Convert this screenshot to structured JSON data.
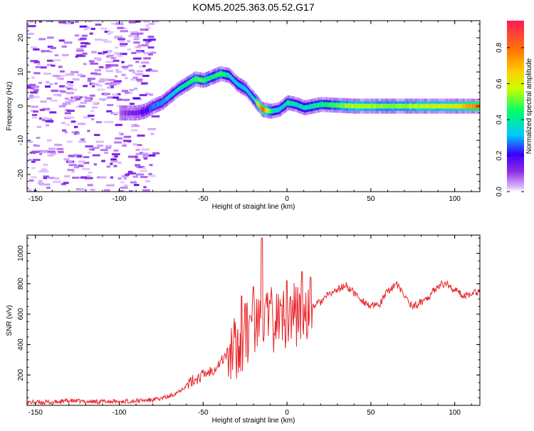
{
  "title": "KOM5.2025.363.05.52.G17",
  "colors": {
    "background": "#ffffff",
    "axis": "#000000",
    "snr_line": "#e8242a",
    "colormap": [
      "#ffffff",
      "#d9b3ff",
      "#8a2be2",
      "#3a00ff",
      "#00c8ff",
      "#00ff6a",
      "#c8ff00",
      "#ffd000",
      "#ff7a00",
      "#ff1a5a"
    ]
  },
  "chart_data": [
    {
      "type": "heatmap",
      "xlabel": "Height of straight line (km)",
      "ylabel": "Frequency (Hz)",
      "xlim": [
        -155,
        115
      ],
      "ylim": [
        -25,
        25
      ],
      "xticks": [
        -150,
        -100,
        -50,
        0,
        50,
        100
      ],
      "yticks": [
        -20,
        -10,
        0,
        10,
        20
      ],
      "colorbar": {
        "label": "Normalized spectral amplitude",
        "range": [
          0,
          0.95
        ],
        "ticks": [
          0.0,
          0.2,
          0.4,
          0.6,
          0.8
        ]
      },
      "ridge": {
        "description_points_x": [
          -100,
          -90,
          -85,
          -80,
          -75,
          -70,
          -65,
          -60,
          -55,
          -50,
          -45,
          -40,
          -35,
          -30,
          -25,
          -20,
          -15,
          -10,
          -5,
          0,
          5,
          10,
          20,
          40,
          60,
          80,
          100,
          115
        ],
        "frequency": [
          -2,
          -2,
          -1.5,
          0,
          1,
          3,
          5,
          6.5,
          8,
          7.5,
          8.5,
          9.5,
          9,
          6.5,
          5,
          2,
          -1,
          -1.5,
          -1,
          1,
          0.5,
          -0.5,
          0.5,
          0,
          0,
          0,
          0,
          0
        ],
        "amplitude": [
          0.1,
          0.15,
          0.2,
          0.3,
          0.3,
          0.35,
          0.4,
          0.45,
          0.5,
          0.5,
          0.45,
          0.5,
          0.4,
          0.35,
          0.35,
          0.4,
          0.9,
          0.45,
          0.35,
          0.45,
          0.4,
          0.4,
          0.45,
          0.6,
          0.55,
          0.6,
          0.65,
          0.85
        ]
      }
    },
    {
      "type": "line",
      "xlabel": "Height of straight line (km)",
      "ylabel": "SNR (v/v)",
      "xlim": [
        -155,
        115
      ],
      "ylim": [
        0,
        1120
      ],
      "xticks": [
        -150,
        -100,
        -50,
        0,
        50,
        100
      ],
      "yticks": [
        200,
        400,
        600,
        800,
        1000
      ],
      "series": [
        {
          "x": [
            -155,
            -140,
            -130,
            -120,
            -110,
            -100,
            -90,
            -80,
            -75,
            -70,
            -65,
            -60,
            -55,
            -50,
            -45,
            -40,
            -35,
            -30,
            -25,
            -20,
            -15,
            -10,
            -5,
            0,
            5,
            10,
            15,
            20,
            25,
            30,
            35,
            40,
            45,
            50,
            55,
            60,
            65,
            70,
            75,
            80,
            85,
            90,
            95,
            100,
            105,
            110,
            115
          ],
          "y": [
            20,
            20,
            30,
            25,
            25,
            25,
            30,
            35,
            45,
            60,
            90,
            130,
            170,
            200,
            230,
            280,
            350,
            380,
            450,
            500,
            540,
            560,
            570,
            580,
            600,
            620,
            650,
            680,
            730,
            760,
            790,
            740,
            690,
            650,
            660,
            750,
            800,
            720,
            650,
            680,
            720,
            790,
            800,
            760,
            720,
            740,
            750
          ]
        }
      ],
      "spikes": [
        {
          "x": -27,
          "y": 720
        },
        {
          "x": -25,
          "y": 670
        },
        {
          "x": -22,
          "y": 590
        },
        {
          "x": -20,
          "y": 780
        },
        {
          "x": -15,
          "y": 1100
        },
        {
          "x": -10,
          "y": 670
        },
        {
          "x": 0,
          "y": 820
        },
        {
          "x": 9,
          "y": 880
        }
      ]
    }
  ]
}
